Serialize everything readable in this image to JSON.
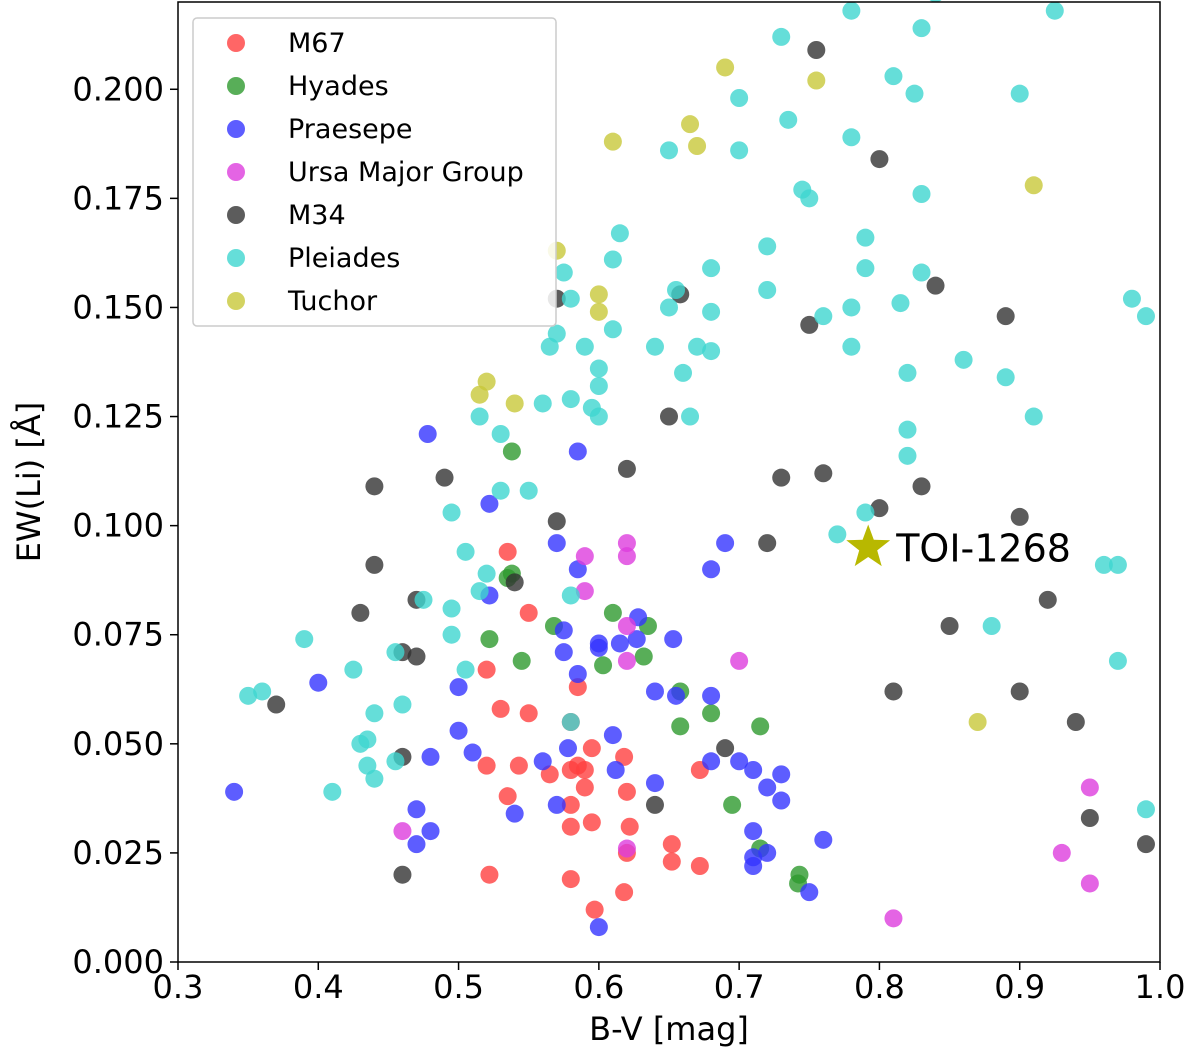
{
  "chart_data": {
    "type": "scatter",
    "xlabel": "B-V [mag]",
    "ylabel": "EW(Li) [Å]",
    "xlim": [
      0.3,
      1.0
    ],
    "ylim": [
      0.0,
      0.22
    ],
    "x_ticks": [
      0.3,
      0.4,
      0.5,
      0.6,
      0.7,
      0.8,
      0.9,
      1.0
    ],
    "x_tick_labels": [
      "0.3",
      "0.4",
      "0.5",
      "0.6",
      "0.7",
      "0.8",
      "0.9",
      "1.0"
    ],
    "y_ticks": [
      0.0,
      0.025,
      0.05,
      0.075,
      0.1,
      0.125,
      0.15,
      0.175,
      0.2
    ],
    "y_tick_labels": [
      "0.000",
      "0.025",
      "0.050",
      "0.075",
      "0.100",
      "0.125",
      "0.150",
      "0.175",
      "0.200"
    ],
    "legend_position": "top-left",
    "series": [
      {
        "name": "M67",
        "color": "#ff4040",
        "points": [
          [
            0.535,
            0.094
          ],
          [
            0.52,
            0.067
          ],
          [
            0.55,
            0.08
          ],
          [
            0.53,
            0.058
          ],
          [
            0.55,
            0.057
          ],
          [
            0.58,
            0.055
          ],
          [
            0.585,
            0.063
          ],
          [
            0.52,
            0.045
          ],
          [
            0.543,
            0.045
          ],
          [
            0.535,
            0.038
          ],
          [
            0.565,
            0.043
          ],
          [
            0.585,
            0.045
          ],
          [
            0.595,
            0.049
          ],
          [
            0.618,
            0.047
          ],
          [
            0.58,
            0.044
          ],
          [
            0.59,
            0.044
          ],
          [
            0.58,
            0.036
          ],
          [
            0.59,
            0.04
          ],
          [
            0.595,
            0.032
          ],
          [
            0.58,
            0.031
          ],
          [
            0.62,
            0.039
          ],
          [
            0.622,
            0.031
          ],
          [
            0.62,
            0.025
          ],
          [
            0.652,
            0.027
          ],
          [
            0.652,
            0.023
          ],
          [
            0.672,
            0.044
          ],
          [
            0.672,
            0.022
          ],
          [
            0.522,
            0.02
          ],
          [
            0.58,
            0.019
          ],
          [
            0.597,
            0.012
          ],
          [
            0.618,
            0.016
          ]
        ]
      },
      {
        "name": "Hyades",
        "color": "#2e9a2e",
        "points": [
          [
            0.538,
            0.117
          ],
          [
            0.538,
            0.089
          ],
          [
            0.535,
            0.088
          ],
          [
            0.522,
            0.074
          ],
          [
            0.545,
            0.069
          ],
          [
            0.568,
            0.077
          ],
          [
            0.61,
            0.08
          ],
          [
            0.603,
            0.068
          ],
          [
            0.632,
            0.07
          ],
          [
            0.635,
            0.077
          ],
          [
            0.658,
            0.062
          ],
          [
            0.658,
            0.054
          ],
          [
            0.68,
            0.057
          ],
          [
            0.695,
            0.036
          ],
          [
            0.715,
            0.054
          ],
          [
            0.715,
            0.026
          ],
          [
            0.743,
            0.02
          ],
          [
            0.742,
            0.018
          ]
        ]
      },
      {
        "name": "Praesepe",
        "color": "#3535ff",
        "points": [
          [
            0.478,
            0.121
          ],
          [
            0.522,
            0.105
          ],
          [
            0.57,
            0.096
          ],
          [
            0.585,
            0.09
          ],
          [
            0.522,
            0.084
          ],
          [
            0.585,
            0.117
          ],
          [
            0.6,
            0.073
          ],
          [
            0.575,
            0.076
          ],
          [
            0.575,
            0.071
          ],
          [
            0.585,
            0.066
          ],
          [
            0.628,
            0.079
          ],
          [
            0.627,
            0.074
          ],
          [
            0.653,
            0.074
          ],
          [
            0.68,
            0.09
          ],
          [
            0.69,
            0.096
          ],
          [
            0.615,
            0.073
          ],
          [
            0.6,
            0.072
          ],
          [
            0.64,
            0.062
          ],
          [
            0.655,
            0.061
          ],
          [
            0.68,
            0.061
          ],
          [
            0.5,
            0.063
          ],
          [
            0.5,
            0.053
          ],
          [
            0.51,
            0.048
          ],
          [
            0.48,
            0.047
          ],
          [
            0.54,
            0.034
          ],
          [
            0.56,
            0.046
          ],
          [
            0.57,
            0.036
          ],
          [
            0.578,
            0.049
          ],
          [
            0.61,
            0.052
          ],
          [
            0.612,
            0.044
          ],
          [
            0.64,
            0.041
          ],
          [
            0.68,
            0.046
          ],
          [
            0.7,
            0.046
          ],
          [
            0.71,
            0.044
          ],
          [
            0.72,
            0.04
          ],
          [
            0.73,
            0.043
          ],
          [
            0.73,
            0.037
          ],
          [
            0.71,
            0.03
          ],
          [
            0.71,
            0.024
          ],
          [
            0.72,
            0.025
          ],
          [
            0.71,
            0.022
          ],
          [
            0.75,
            0.016
          ],
          [
            0.76,
            0.028
          ],
          [
            0.6,
            0.008
          ],
          [
            0.4,
            0.064
          ],
          [
            0.34,
            0.039
          ],
          [
            0.47,
            0.035
          ],
          [
            0.47,
            0.027
          ],
          [
            0.48,
            0.03
          ]
        ]
      },
      {
        "name": "Ursa Major Group",
        "color": "#dd3ddd",
        "points": [
          [
            0.62,
            0.096
          ],
          [
            0.62,
            0.093
          ],
          [
            0.59,
            0.093
          ],
          [
            0.59,
            0.085
          ],
          [
            0.62,
            0.077
          ],
          [
            0.62,
            0.069
          ],
          [
            0.7,
            0.069
          ],
          [
            0.46,
            0.03
          ],
          [
            0.62,
            0.026
          ],
          [
            0.81,
            0.01
          ],
          [
            0.93,
            0.025
          ],
          [
            0.95,
            0.04
          ],
          [
            0.95,
            0.018
          ]
        ]
      },
      {
        "name": "M34",
        "color": "#333333",
        "points": [
          [
            0.755,
            0.209
          ],
          [
            0.8,
            0.184
          ],
          [
            0.658,
            0.153
          ],
          [
            0.75,
            0.146
          ],
          [
            0.84,
            0.155
          ],
          [
            0.89,
            0.148
          ],
          [
            0.57,
            0.152
          ],
          [
            0.62,
            0.113
          ],
          [
            0.65,
            0.125
          ],
          [
            0.44,
            0.109
          ],
          [
            0.49,
            0.111
          ],
          [
            0.57,
            0.101
          ],
          [
            0.73,
            0.111
          ],
          [
            0.76,
            0.112
          ],
          [
            0.8,
            0.104
          ],
          [
            0.83,
            0.109
          ],
          [
            0.9,
            0.102
          ],
          [
            0.72,
            0.096
          ],
          [
            0.44,
            0.091
          ],
          [
            0.43,
            0.08
          ],
          [
            0.54,
            0.087
          ],
          [
            0.47,
            0.083
          ],
          [
            0.46,
            0.071
          ],
          [
            0.47,
            0.07
          ],
          [
            0.85,
            0.077
          ],
          [
            0.92,
            0.083
          ],
          [
            0.81,
            0.062
          ],
          [
            0.9,
            0.062
          ],
          [
            0.94,
            0.055
          ],
          [
            0.37,
            0.059
          ],
          [
            0.46,
            0.047
          ],
          [
            0.69,
            0.049
          ],
          [
            0.64,
            0.036
          ],
          [
            0.95,
            0.033
          ],
          [
            0.46,
            0.02
          ],
          [
            0.99,
            0.027
          ]
        ]
      },
      {
        "name": "Pleiades",
        "color": "#3fd6d0",
        "points": [
          [
            0.73,
            0.212
          ],
          [
            0.78,
            0.218
          ],
          [
            0.84,
            0.222
          ],
          [
            0.925,
            0.218
          ],
          [
            0.81,
            0.203
          ],
          [
            0.825,
            0.199
          ],
          [
            0.83,
            0.214
          ],
          [
            0.9,
            0.199
          ],
          [
            0.7,
            0.198
          ],
          [
            0.7,
            0.186
          ],
          [
            0.65,
            0.186
          ],
          [
            0.735,
            0.193
          ],
          [
            0.78,
            0.189
          ],
          [
            0.745,
            0.177
          ],
          [
            0.75,
            0.175
          ],
          [
            0.83,
            0.176
          ],
          [
            0.615,
            0.167
          ],
          [
            0.61,
            0.161
          ],
          [
            0.72,
            0.164
          ],
          [
            0.79,
            0.166
          ],
          [
            0.68,
            0.159
          ],
          [
            0.58,
            0.152
          ],
          [
            0.575,
            0.158
          ],
          [
            0.655,
            0.154
          ],
          [
            0.65,
            0.15
          ],
          [
            0.72,
            0.154
          ],
          [
            0.79,
            0.159
          ],
          [
            0.83,
            0.158
          ],
          [
            0.815,
            0.151
          ],
          [
            0.78,
            0.15
          ],
          [
            0.76,
            0.148
          ],
          [
            0.68,
            0.149
          ],
          [
            0.68,
            0.14
          ],
          [
            0.67,
            0.141
          ],
          [
            0.61,
            0.145
          ],
          [
            0.57,
            0.144
          ],
          [
            0.565,
            0.141
          ],
          [
            0.59,
            0.141
          ],
          [
            0.6,
            0.136
          ],
          [
            0.6,
            0.132
          ],
          [
            0.64,
            0.141
          ],
          [
            0.66,
            0.135
          ],
          [
            0.78,
            0.141
          ],
          [
            0.86,
            0.138
          ],
          [
            0.82,
            0.135
          ],
          [
            0.89,
            0.134
          ],
          [
            0.98,
            0.152
          ],
          [
            0.99,
            0.148
          ],
          [
            0.515,
            0.125
          ],
          [
            0.53,
            0.121
          ],
          [
            0.56,
            0.128
          ],
          [
            0.58,
            0.129
          ],
          [
            0.595,
            0.127
          ],
          [
            0.6,
            0.125
          ],
          [
            0.665,
            0.125
          ],
          [
            0.91,
            0.125
          ],
          [
            0.82,
            0.122
          ],
          [
            0.82,
            0.116
          ],
          [
            0.53,
            0.108
          ],
          [
            0.55,
            0.108
          ],
          [
            0.495,
            0.103
          ],
          [
            0.79,
            0.103
          ],
          [
            0.77,
            0.098
          ],
          [
            0.96,
            0.091
          ],
          [
            0.97,
            0.091
          ],
          [
            0.505,
            0.094
          ],
          [
            0.52,
            0.089
          ],
          [
            0.515,
            0.085
          ],
          [
            0.58,
            0.084
          ],
          [
            0.475,
            0.083
          ],
          [
            0.495,
            0.081
          ],
          [
            0.495,
            0.075
          ],
          [
            0.505,
            0.067
          ],
          [
            0.39,
            0.074
          ],
          [
            0.425,
            0.067
          ],
          [
            0.455,
            0.071
          ],
          [
            0.46,
            0.059
          ],
          [
            0.44,
            0.057
          ],
          [
            0.88,
            0.077
          ],
          [
            0.97,
            0.069
          ],
          [
            0.35,
            0.061
          ],
          [
            0.36,
            0.062
          ],
          [
            0.43,
            0.05
          ],
          [
            0.435,
            0.045
          ],
          [
            0.435,
            0.051
          ],
          [
            0.44,
            0.042
          ],
          [
            0.455,
            0.046
          ],
          [
            0.41,
            0.039
          ],
          [
            0.58,
            0.055
          ],
          [
            0.99,
            0.035
          ]
        ]
      },
      {
        "name": "Tuchor",
        "color": "#c8c83a",
        "points": [
          [
            0.69,
            0.205
          ],
          [
            0.755,
            0.202
          ],
          [
            0.61,
            0.188
          ],
          [
            0.665,
            0.192
          ],
          [
            0.67,
            0.187
          ],
          [
            0.91,
            0.178
          ],
          [
            0.57,
            0.163
          ],
          [
            0.6,
            0.153
          ],
          [
            0.6,
            0.149
          ],
          [
            0.52,
            0.133
          ],
          [
            0.515,
            0.13
          ],
          [
            0.54,
            0.128
          ],
          [
            0.87,
            0.055
          ]
        ]
      }
    ],
    "annotation": {
      "label": "TOI-1268",
      "x": 0.792,
      "y": 0.095,
      "marker": "star",
      "color": "#b8b800"
    }
  }
}
